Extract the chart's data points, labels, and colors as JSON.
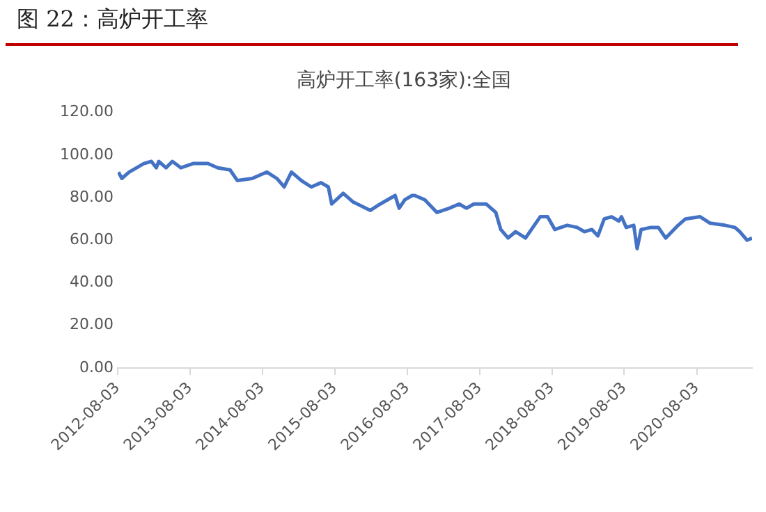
{
  "chart_data": {
    "type": "line",
    "title": "高炉开工率(163家):全国",
    "subtitle": "图 22：高炉开工率",
    "x": [
      "2012-08-07",
      "2012-08-24",
      "2012-09-30",
      "2012-12-13",
      "2013-01-20",
      "2013-02-14",
      "2013-02-26",
      "2013-04-04",
      "2013-05-06",
      "2013-06-18",
      "2013-08-19",
      "2013-11-01",
      "2013-12-21",
      "2014-02-21",
      "2014-03-30",
      "2014-06-13",
      "2014-08-26",
      "2014-10-15",
      "2014-11-21",
      "2014-12-28",
      "2015-02-16",
      "2015-04-07",
      "2015-05-26",
      "2015-07-02",
      "2015-07-19",
      "2015-09-15",
      "2015-11-03",
      "2016-01-30",
      "2016-03-20",
      "2016-06-03",
      "2016-06-23",
      "2016-07-22",
      "2016-08-28",
      "2016-09-10",
      "2016-10-30",
      "2016-12-31",
      "2017-03-03",
      "2017-04-22",
      "2017-05-29",
      "2017-07-05",
      "2017-09-05",
      "2017-10-24",
      "2017-11-18",
      "2017-12-25",
      "2018-02-01",
      "2018-03-23",
      "2018-04-29",
      "2018-06-05",
      "2018-07-12",
      "2018-08-18",
      "2018-10-19",
      "2018-12-08",
      "2019-01-14",
      "2019-02-21",
      "2019-03-23",
      "2019-04-24",
      "2019-05-31",
      "2019-07-07",
      "2019-07-20",
      "2019-08-13",
      "2019-09-20",
      "2019-10-07",
      "2019-10-27",
      "2019-12-16",
      "2020-01-22",
      "2020-02-28",
      "2020-05-01",
      "2020-06-07",
      "2020-08-20",
      "2020-10-09",
      "2020-12-23",
      "2021-02-11",
      "2021-03-08",
      "2021-04-14",
      "2021-05-09"
    ],
    "series": [
      {
        "color": "#4472c4",
        "values": [
          92,
          89,
          92,
          96,
          97,
          94,
          97,
          94,
          97,
          94,
          96,
          96,
          94,
          93,
          88,
          89,
          92,
          89,
          85,
          92,
          88,
          85,
          87,
          85,
          77,
          82,
          78,
          74,
          77,
          81,
          75,
          79,
          81,
          81,
          79,
          73,
          75,
          77,
          75,
          77,
          77,
          73,
          65,
          61,
          64,
          61,
          66,
          71,
          71,
          65,
          67,
          66,
          64,
          65,
          62,
          70,
          71,
          69,
          71,
          66,
          67,
          56,
          65,
          66,
          66,
          61,
          67,
          70,
          71,
          68,
          67,
          66,
          64,
          60,
          61
        ]
      }
    ],
    "xlim": [
      "2012-08-03",
      "2021-05-09"
    ],
    "xticks": [
      "2012-08-03",
      "2013-08-03",
      "2014-08-03",
      "2015-08-03",
      "2016-08-03",
      "2017-08-03",
      "2018-08-03",
      "2019-08-03",
      "2020-08-03"
    ],
    "ylim": [
      0,
      120
    ],
    "yticks": [
      {
        "value": 0,
        "label": "0.00"
      },
      {
        "value": 20,
        "label": "20.00"
      },
      {
        "value": 40,
        "label": "40.00"
      },
      {
        "value": 60,
        "label": "60.00"
      },
      {
        "value": 80,
        "label": "80.00"
      },
      {
        "value": 100,
        "label": "100.00"
      },
      {
        "value": 120,
        "label": "120.00"
      }
    ],
    "grid": false,
    "legend": false,
    "marker": "none",
    "line_style": "solid"
  }
}
